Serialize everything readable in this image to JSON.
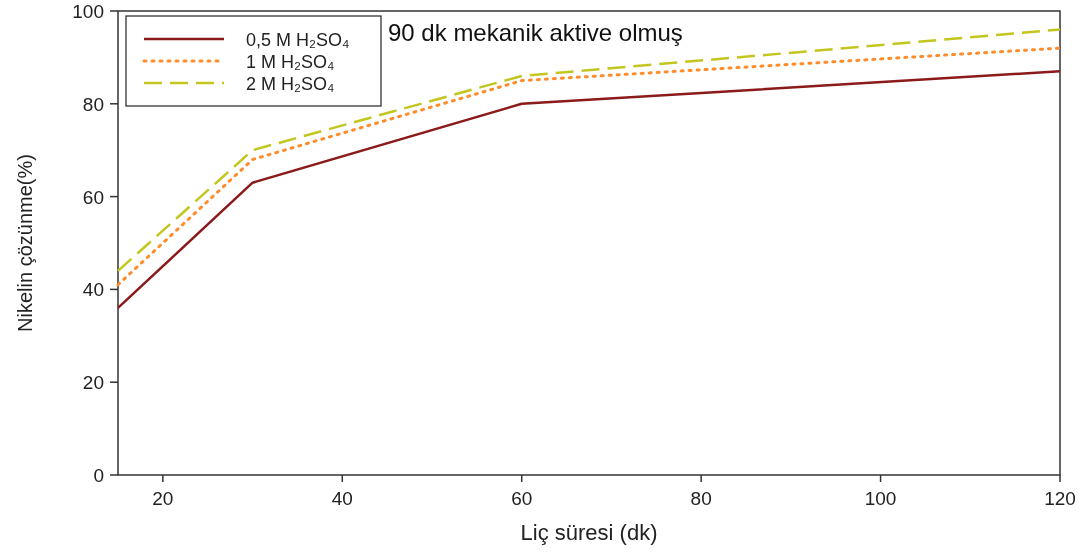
{
  "chart_data": {
    "type": "line",
    "title": "90 dk mekanik aktive olmuş",
    "xlabel": "Liç süresi (dk)",
    "ylabel": "Nikelin çözünme(%)",
    "x": [
      15,
      30,
      60,
      120
    ],
    "series": [
      {
        "name": "0,5 M  H₂SO₄",
        "color": "#8b1a1a",
        "values": [
          36,
          63,
          80,
          87
        ],
        "line_style": "solid"
      },
      {
        "name": "1 M  H₂SO₄",
        "color": "#ff8c2a",
        "values": [
          41,
          68,
          85,
          92
        ],
        "line_style": "dotted"
      },
      {
        "name": "2 M  H₂SO₄",
        "color": "#c2c61e",
        "values": [
          44,
          70,
          86,
          96
        ],
        "line_style": "dashed"
      }
    ],
    "xlim": [
      15,
      120
    ],
    "xticks": [
      20,
      40,
      60,
      80,
      100,
      120
    ],
    "ylim": [
      0,
      100
    ],
    "yticks": [
      0,
      20,
      40,
      60,
      80,
      100
    ],
    "grid": false,
    "legend": "top left",
    "marker": "none"
  }
}
